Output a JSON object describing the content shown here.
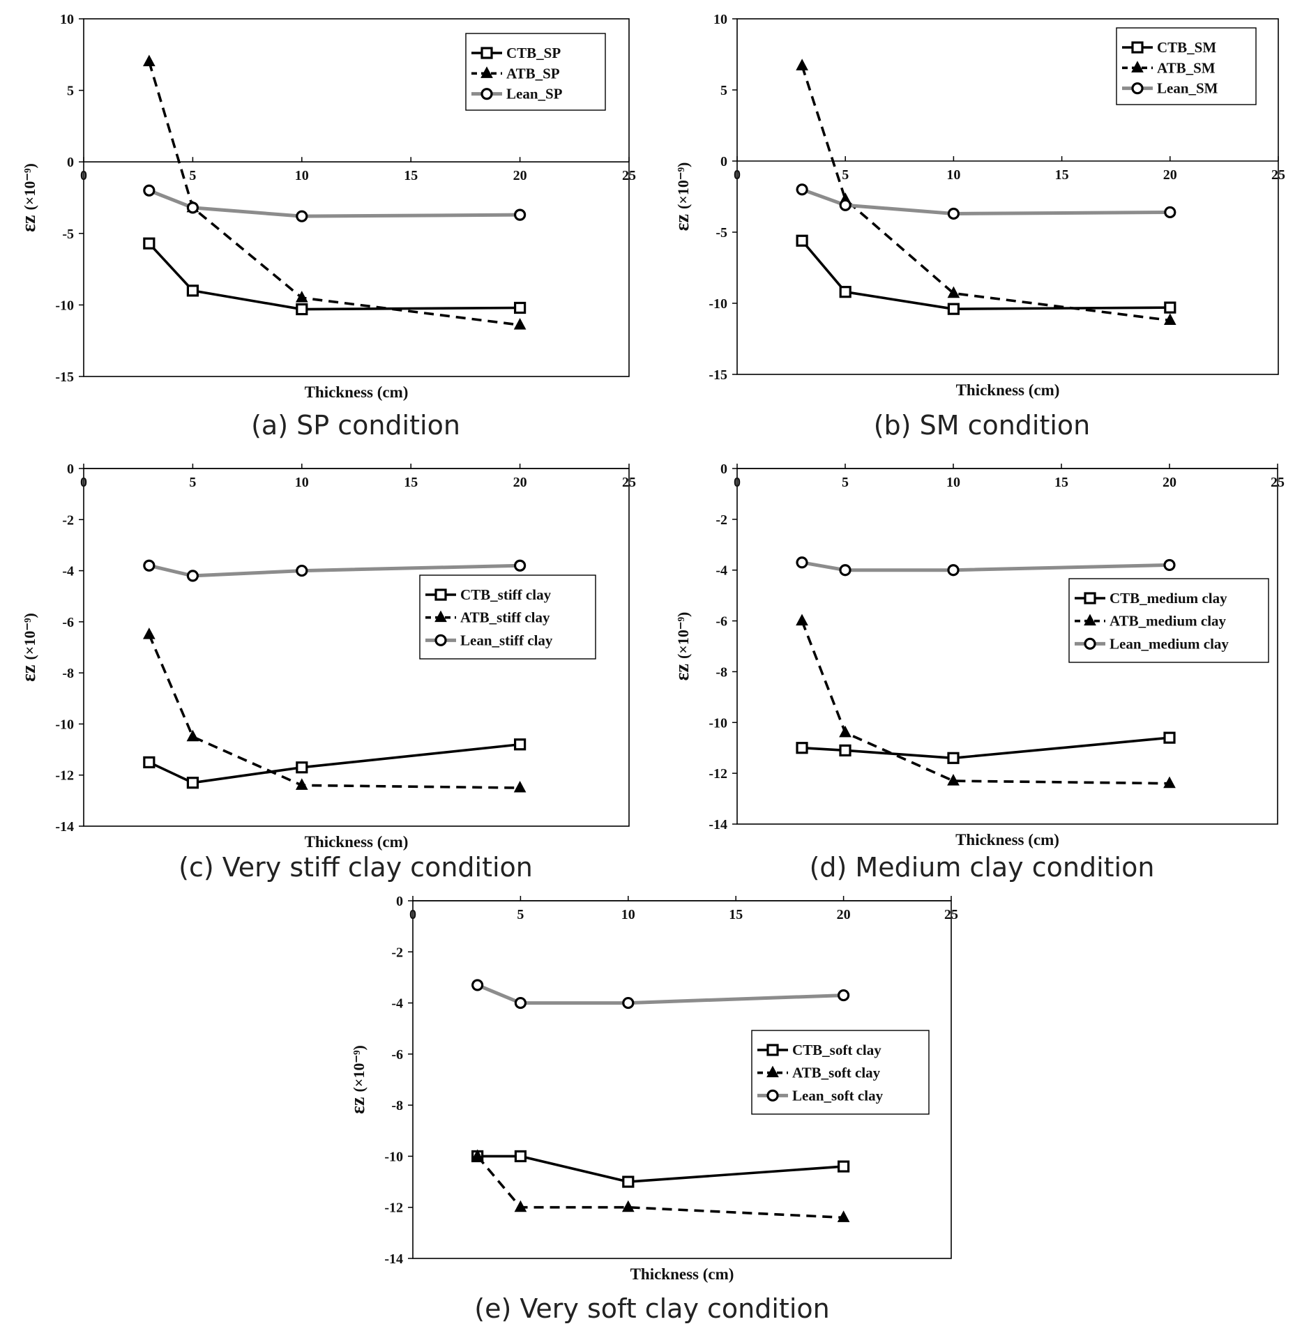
{
  "colors": {
    "ctb": "#000000",
    "atb": "#000000",
    "lean": "#8c8c8c",
    "axis": "#000000"
  },
  "chart_data": [
    {
      "type": "line",
      "caption": "(a) SP condition",
      "xlabel": "Thickness  (cm)",
      "ylabel_main": "εz",
      "ylabel_unit": "(×10⁻⁹)",
      "xlim": [
        0,
        25
      ],
      "ylim": [
        -15,
        10
      ],
      "xticks": [
        "0",
        "5",
        "10",
        "15",
        "20",
        "25"
      ],
      "yticks": [
        "-15",
        "-10",
        "-5",
        "0",
        "5",
        "10"
      ],
      "legend_position": "top-right",
      "series": [
        {
          "name": "CTB_SP",
          "key": "ctb",
          "x": [
            3,
            5,
            10,
            20
          ],
          "y": [
            -5.7,
            -9.0,
            -10.3,
            -10.2
          ]
        },
        {
          "name": "ATB_SP",
          "key": "atb",
          "x": [
            3,
            5,
            10,
            20
          ],
          "y": [
            7.0,
            -3.2,
            -9.5,
            -11.4
          ]
        },
        {
          "name": "Lean_SP",
          "key": "lean",
          "x": [
            3,
            5,
            10,
            20
          ],
          "y": [
            -2.0,
            -3.2,
            -3.8,
            -3.7
          ]
        }
      ]
    },
    {
      "type": "line",
      "caption": "(b) SM condition",
      "xlabel": "Thickness  (cm)",
      "ylabel_main": "εz",
      "ylabel_unit": "(×10⁻⁹)",
      "xlim": [
        0,
        25
      ],
      "ylim": [
        -15,
        10
      ],
      "xticks": [
        "0",
        "5",
        "10",
        "15",
        "20",
        "25"
      ],
      "yticks": [
        "-15",
        "-10",
        "-5",
        "0",
        "5",
        "10"
      ],
      "legend_position": "top-right",
      "series": [
        {
          "name": "CTB_SM",
          "key": "ctb",
          "x": [
            3,
            5,
            10,
            20
          ],
          "y": [
            -5.6,
            -9.2,
            -10.4,
            -10.3
          ]
        },
        {
          "name": "ATB_SM",
          "key": "atb",
          "x": [
            3,
            5,
            10,
            20
          ],
          "y": [
            6.7,
            -2.7,
            -9.3,
            -11.2
          ]
        },
        {
          "name": "Lean_SM",
          "key": "lean",
          "x": [
            3,
            5,
            10,
            20
          ],
          "y": [
            -2.0,
            -3.1,
            -3.7,
            -3.6
          ]
        }
      ]
    },
    {
      "type": "line",
      "caption": "(c) Very stiff clay condition",
      "xlabel": "Thickness  (cm)",
      "ylabel_main": "εz",
      "ylabel_unit": "(×10⁻⁹)",
      "xlim": [
        0,
        25
      ],
      "ylim": [
        -14,
        0
      ],
      "xticks": [
        "0",
        "5",
        "10",
        "15",
        "20",
        "25"
      ],
      "yticks": [
        "-14",
        "-12",
        "-10",
        "-8",
        "-6",
        "-4",
        "-2",
        "0"
      ],
      "legend_position": "center-right",
      "series": [
        {
          "name": "CTB_stiff clay",
          "key": "ctb",
          "x": [
            3,
            5,
            10,
            20
          ],
          "y": [
            -11.5,
            -12.3,
            -11.7,
            -10.8
          ]
        },
        {
          "name": "ATB_stiff clay",
          "key": "atb",
          "x": [
            3,
            5,
            10,
            20
          ],
          "y": [
            -6.5,
            -10.5,
            -12.4,
            -12.5
          ]
        },
        {
          "name": "Lean_stiff clay",
          "key": "lean",
          "x": [
            3,
            5,
            10,
            20
          ],
          "y": [
            -3.8,
            -4.2,
            -4.0,
            -3.8
          ]
        }
      ]
    },
    {
      "type": "line",
      "caption": "(d) Medium clay condition",
      "xlabel": "Thickness  (cm)",
      "ylabel_main": "εz",
      "ylabel_unit": "(×10⁻⁹)",
      "xlim": [
        0,
        25
      ],
      "ylim": [
        -14,
        0
      ],
      "xticks": [
        "0",
        "5",
        "10",
        "15",
        "20",
        "25"
      ],
      "yticks": [
        "-14",
        "-12",
        "-10",
        "-8",
        "-6",
        "-4",
        "-2",
        "0"
      ],
      "legend_position": "center-right",
      "series": [
        {
          "name": "CTB_medium clay",
          "key": "ctb",
          "x": [
            3,
            5,
            10,
            20
          ],
          "y": [
            -11.0,
            -11.1,
            -11.4,
            -10.6
          ]
        },
        {
          "name": "ATB_medium clay",
          "key": "atb",
          "x": [
            3,
            5,
            10,
            20
          ],
          "y": [
            -6.0,
            -10.4,
            -12.3,
            -12.4
          ]
        },
        {
          "name": "Lean_medium clay",
          "key": "lean",
          "x": [
            3,
            5,
            10,
            20
          ],
          "y": [
            -3.7,
            -4.0,
            -4.0,
            -3.8
          ]
        }
      ]
    },
    {
      "type": "line",
      "caption": "(e) Very soft clay condition",
      "xlabel": "Thickness  (cm)",
      "ylabel_main": "εz",
      "ylabel_unit": "(×10⁻⁹)",
      "xlim": [
        0,
        25
      ],
      "ylim": [
        -14,
        0
      ],
      "xticks": [
        "0",
        "5",
        "10",
        "15",
        "20",
        "25"
      ],
      "yticks": [
        "-14",
        "-12",
        "-10",
        "-8",
        "-6",
        "-4",
        "-2",
        "0"
      ],
      "legend_position": "center-right",
      "series": [
        {
          "name": "CTB_soft clay",
          "key": "ctb",
          "x": [
            3,
            5,
            10,
            20
          ],
          "y": [
            -10.0,
            -10.0,
            -11.0,
            -10.4
          ]
        },
        {
          "name": "ATB_soft clay",
          "key": "atb",
          "x": [
            3,
            5,
            10,
            20
          ],
          "y": [
            -10.0,
            -12.0,
            -12.0,
            -12.4
          ]
        },
        {
          "name": "Lean_soft clay",
          "key": "lean",
          "x": [
            3,
            5,
            10,
            20
          ],
          "y": [
            -3.3,
            -4.0,
            -4.0,
            -3.7
          ]
        }
      ]
    }
  ]
}
